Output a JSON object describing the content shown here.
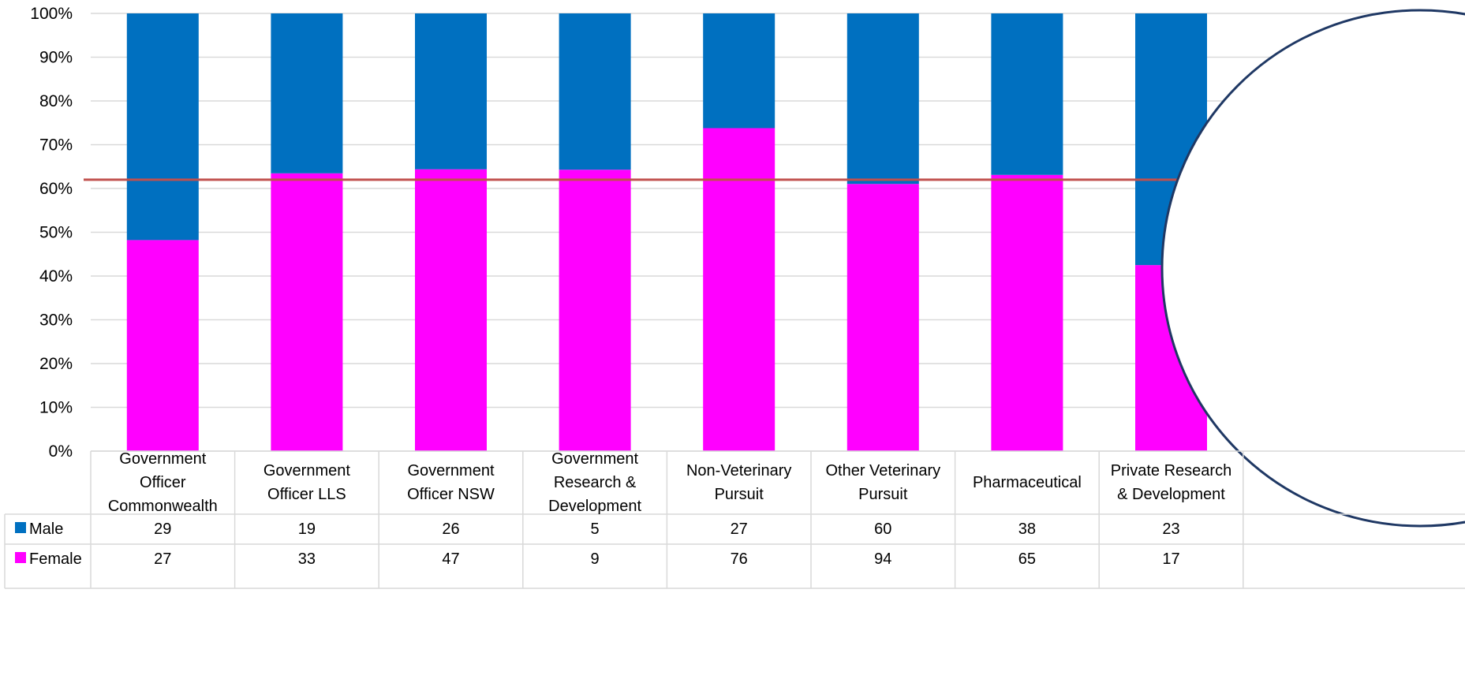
{
  "chart_data": {
    "type": "bar",
    "stacked": "percent",
    "categories": [
      [
        "Government",
        "Officer",
        "Commonwealth"
      ],
      [
        "Government",
        "Officer LLS"
      ],
      [
        "Government",
        "Officer NSW"
      ],
      [
        "Government",
        "Research &",
        "Development"
      ],
      [
        "Non-Veterinary",
        "Pursuit"
      ],
      [
        "Other Veterinary",
        "Pursuit"
      ],
      [
        "Pharmaceutical"
      ],
      [
        "Private Research",
        "& Development"
      ]
    ],
    "series": [
      {
        "name": "Male",
        "color": "#0070c0",
        "values": [
          29,
          19,
          26,
          5,
          27,
          60,
          38,
          23
        ]
      },
      {
        "name": "Female",
        "color": "#ff00ff",
        "values": [
          27,
          33,
          47,
          9,
          76,
          94,
          65,
          17
        ]
      }
    ],
    "y_ticks": [
      "0%",
      "10%",
      "20%",
      "30%",
      "40%",
      "50%",
      "60%",
      "70%",
      "80%",
      "90%",
      "100%"
    ],
    "ylim": [
      0,
      100
    ],
    "reference_line": {
      "value": 62,
      "color": "#c0504d"
    },
    "grid": true,
    "data_table": true,
    "callout_circle_color": "#1f3864"
  }
}
